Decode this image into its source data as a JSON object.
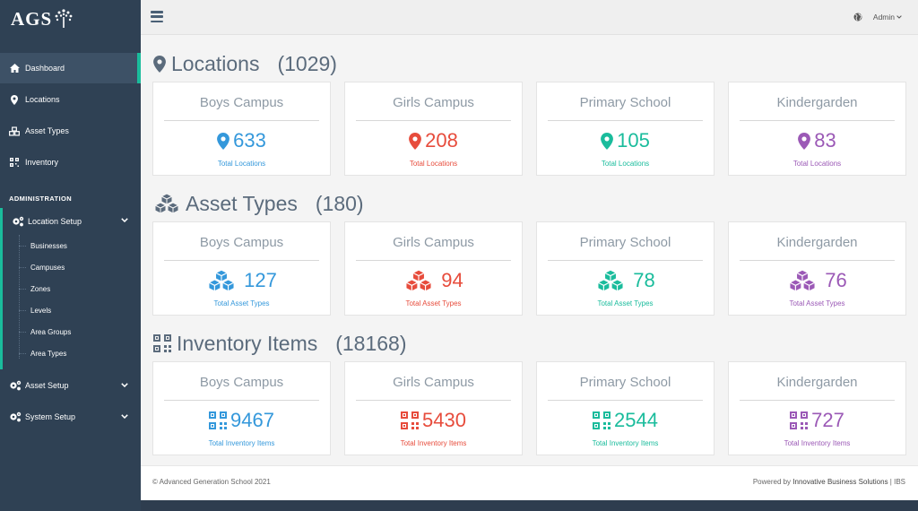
{
  "logo": {
    "text": "AGS"
  },
  "sidebar": {
    "main_items": [
      {
        "label": "Dashboard",
        "icon": "home-icon"
      },
      {
        "label": "Locations",
        "icon": "map-marker-icon"
      },
      {
        "label": "Asset Types",
        "icon": "cubes-icon"
      },
      {
        "label": "Inventory",
        "icon": "qrcode-icon"
      }
    ],
    "admin_header": "ADMINISTRATION",
    "location_setup": {
      "label": "Location Setup",
      "sub_items": [
        "Businesses",
        "Campuses",
        "Zones",
        "Levels",
        "Area Groups",
        "Area Types"
      ]
    },
    "asset_setup": {
      "label": "Asset Setup"
    },
    "system_setup": {
      "label": "System Setup"
    }
  },
  "topbar": {
    "user": "Admin"
  },
  "sections": {
    "locations": {
      "title": "Locations",
      "count": "(1029)",
      "cards": [
        {
          "name": "Boys Campus",
          "value": "633",
          "label": "Total Locations",
          "color": "#3498db"
        },
        {
          "name": "Girls Campus",
          "value": "208",
          "label": "Total Locations",
          "color": "#e74c3c"
        },
        {
          "name": "Primary School",
          "value": "105",
          "label": "Total Locations",
          "color": "#1abc9c"
        },
        {
          "name": "Kindergarden",
          "value": "83",
          "label": "Total Locations",
          "color": "#9b59b6"
        }
      ]
    },
    "asset_types": {
      "title": "Asset Types",
      "count": "(180)",
      "cards": [
        {
          "name": "Boys Campus",
          "value": "127",
          "label": "Total Asset Types",
          "color": "#3498db"
        },
        {
          "name": "Girls Campus",
          "value": "94",
          "label": "Total Asset Types",
          "color": "#e74c3c"
        },
        {
          "name": "Primary School",
          "value": "78",
          "label": "Total Asset Types",
          "color": "#1abc9c"
        },
        {
          "name": "Kindergarden",
          "value": "76",
          "label": "Total Asset Types",
          "color": "#9b59b6"
        }
      ]
    },
    "inventory": {
      "title": "Inventory Items",
      "count": "(18168)",
      "cards": [
        {
          "name": "Boys Campus",
          "value": "9467",
          "label": "Total Inventory Items",
          "color": "#3498db"
        },
        {
          "name": "Girls Campus",
          "value": "5430",
          "label": "Total Inventory Items",
          "color": "#e74c3c"
        },
        {
          "name": "Primary School",
          "value": "2544",
          "label": "Total Inventory Items",
          "color": "#1abc9c"
        },
        {
          "name": "Kindergarden",
          "value": "727",
          "label": "Total Inventory Items",
          "color": "#9b59b6"
        }
      ]
    }
  },
  "footer": {
    "copyright": "© Advanced Generation School 2021",
    "powered_prefix": "Powered by ",
    "powered_org": "Innovative Business Solutions",
    "powered_suffix": " | IBS"
  }
}
